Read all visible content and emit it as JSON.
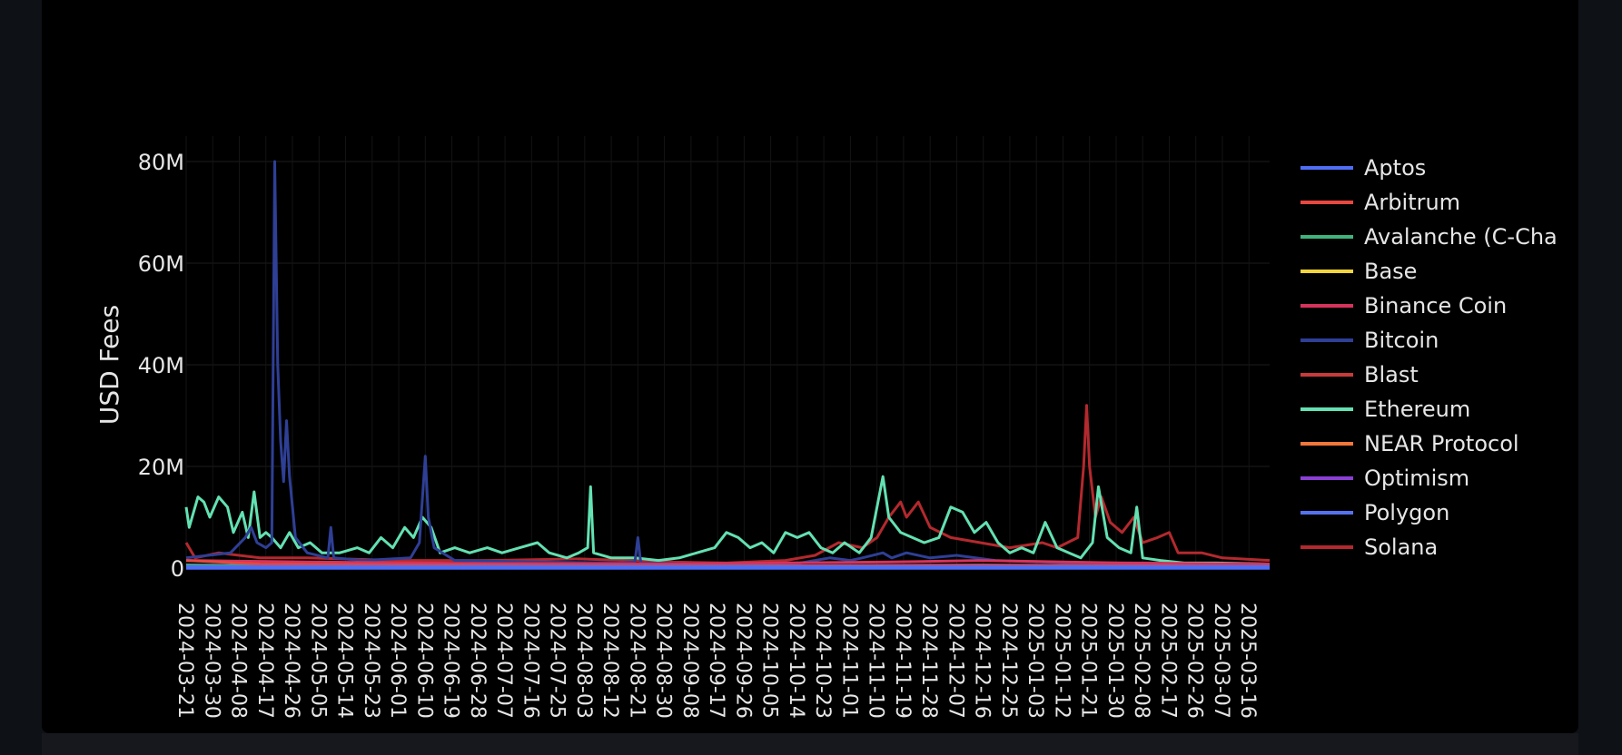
{
  "chart_data": {
    "type": "line",
    "title": "",
    "xlabel": "",
    "ylabel": "USD Fees",
    "ylim": [
      0,
      85000000
    ],
    "y_ticks": [
      {
        "value": 0,
        "label": "0"
      },
      {
        "value": 20000000,
        "label": "20M"
      },
      {
        "value": 40000000,
        "label": "40M"
      },
      {
        "value": 60000000,
        "label": "60M"
      },
      {
        "value": 80000000,
        "label": "80M"
      }
    ],
    "x_range": [
      "2024-03-21",
      "2025-03-23"
    ],
    "x_ticks": [
      "2024-03-21",
      "2024-03-30",
      "2024-04-08",
      "2024-04-17",
      "2024-04-26",
      "2024-05-05",
      "2024-05-14",
      "2024-05-23",
      "2024-06-01",
      "2024-06-10",
      "2024-06-19",
      "2024-06-28",
      "2024-07-07",
      "2024-07-16",
      "2024-07-25",
      "2024-08-03",
      "2024-08-12",
      "2024-08-21",
      "2024-08-30",
      "2024-09-08",
      "2024-09-17",
      "2024-09-26",
      "2024-10-05",
      "2024-10-14",
      "2024-10-23",
      "2024-11-01",
      "2024-11-10",
      "2024-11-19",
      "2024-11-28",
      "2024-12-07",
      "2024-12-16",
      "2024-12-25",
      "2025-01-03",
      "2025-01-12",
      "2025-01-21",
      "2025-01-30",
      "2025-02-08",
      "2025-02-17",
      "2025-02-26",
      "2025-03-07",
      "2025-03-16"
    ],
    "grid": true,
    "legend_position": "right",
    "series": [
      {
        "name": "Aptos",
        "color": "#4f6ef5",
        "points": [
          [
            "2024-03-21",
            0.15
          ],
          [
            "2024-06-01",
            0.15
          ],
          [
            "2024-09-01",
            0.12
          ],
          [
            "2024-12-01",
            0.15
          ],
          [
            "2025-03-23",
            0.12
          ]
        ]
      },
      {
        "name": "Arbitrum",
        "color": "#e8473f",
        "points": [
          [
            "2024-03-21",
            1.5
          ],
          [
            "2024-04-15",
            0.8
          ],
          [
            "2024-06-01",
            0.6
          ],
          [
            "2024-08-01",
            0.5
          ],
          [
            "2024-10-01",
            0.4
          ],
          [
            "2024-12-15",
            0.6
          ],
          [
            "2025-02-01",
            0.5
          ],
          [
            "2025-03-23",
            0.3
          ]
        ]
      },
      {
        "name": "Avalanche (C-Chain)",
        "color": "#3fb47d",
        "points": [
          [
            "2024-03-21",
            0.6
          ],
          [
            "2024-05-01",
            0.4
          ],
          [
            "2024-08-01",
            0.3
          ],
          [
            "2024-11-15",
            0.5
          ],
          [
            "2025-01-20",
            0.4
          ],
          [
            "2025-03-23",
            0.2
          ]
        ]
      },
      {
        "name": "Base",
        "color": "#f2d43c",
        "points": [
          [
            "2024-03-21",
            0.3
          ],
          [
            "2024-06-01",
            0.5
          ],
          [
            "2024-09-01",
            0.3
          ],
          [
            "2024-12-01",
            0.5
          ],
          [
            "2025-03-23",
            0.3
          ]
        ]
      },
      {
        "name": "Binance Coin",
        "color": "#d6335c",
        "points": [
          [
            "2024-03-21",
            1.5
          ],
          [
            "2024-05-01",
            1.2
          ],
          [
            "2024-07-01",
            0.9
          ],
          [
            "2024-09-01",
            0.8
          ],
          [
            "2024-11-15",
            1.2
          ],
          [
            "2024-12-15",
            1.5
          ],
          [
            "2025-02-01",
            1.0
          ],
          [
            "2025-03-23",
            0.8
          ]
        ]
      },
      {
        "name": "Bitcoin",
        "color": "#2e3f95",
        "points": [
          [
            "2024-03-21",
            2
          ],
          [
            "2024-04-05",
            3
          ],
          [
            "2024-04-10",
            6
          ],
          [
            "2024-04-12",
            8
          ],
          [
            "2024-04-14",
            5
          ],
          [
            "2024-04-17",
            4
          ],
          [
            "2024-04-19",
            5
          ],
          [
            "2024-04-20",
            80
          ],
          [
            "2024-04-21",
            40
          ],
          [
            "2024-04-22",
            25
          ],
          [
            "2024-04-23",
            17
          ],
          [
            "2024-04-24",
            29
          ],
          [
            "2024-04-25",
            18
          ],
          [
            "2024-04-27",
            6
          ],
          [
            "2024-05-01",
            3
          ],
          [
            "2024-05-08",
            2
          ],
          [
            "2024-05-09",
            8
          ],
          [
            "2024-05-10",
            2
          ],
          [
            "2024-05-20",
            1.5
          ],
          [
            "2024-06-05",
            2
          ],
          [
            "2024-06-08",
            5
          ],
          [
            "2024-06-10",
            22
          ],
          [
            "2024-06-11",
            10
          ],
          [
            "2024-06-13",
            4
          ],
          [
            "2024-06-20",
            1.5
          ],
          [
            "2024-07-15",
            1.2
          ],
          [
            "2024-08-15",
            1
          ],
          [
            "2024-08-20",
            1.2
          ],
          [
            "2024-08-21",
            6
          ],
          [
            "2024-08-22",
            1
          ],
          [
            "2024-09-15",
            0.8
          ],
          [
            "2024-10-15",
            1
          ],
          [
            "2024-10-25",
            2
          ],
          [
            "2024-11-01",
            1.5
          ],
          [
            "2024-11-05",
            2
          ],
          [
            "2024-11-12",
            3
          ],
          [
            "2024-11-15",
            2
          ],
          [
            "2024-11-20",
            3
          ],
          [
            "2024-11-28",
            2
          ],
          [
            "2024-12-07",
            2.5
          ],
          [
            "2024-12-20",
            1.5
          ],
          [
            "2025-01-15",
            1
          ],
          [
            "2025-02-10",
            1
          ],
          [
            "2025-03-23",
            0.5
          ]
        ]
      },
      {
        "name": "Blast",
        "color": "#c93a3a",
        "points": [
          [
            "2024-03-21",
            0.4
          ],
          [
            "2024-06-01",
            0.3
          ],
          [
            "2024-09-01",
            0.2
          ],
          [
            "2025-03-23",
            0.1
          ]
        ]
      },
      {
        "name": "Ethereum",
        "color": "#63e1b2",
        "points": [
          [
            "2024-03-21",
            12
          ],
          [
            "2024-03-22",
            8
          ],
          [
            "2024-03-25",
            14
          ],
          [
            "2024-03-27",
            13
          ],
          [
            "2024-03-29",
            10
          ],
          [
            "2024-04-01",
            14
          ],
          [
            "2024-04-04",
            12
          ],
          [
            "2024-04-06",
            7
          ],
          [
            "2024-04-09",
            11
          ],
          [
            "2024-04-11",
            6
          ],
          [
            "2024-04-13",
            15
          ],
          [
            "2024-04-15",
            6
          ],
          [
            "2024-04-17",
            7
          ],
          [
            "2024-04-19",
            6
          ],
          [
            "2024-04-22",
            4
          ],
          [
            "2024-04-25",
            7
          ],
          [
            "2024-04-28",
            4
          ],
          [
            "2024-05-02",
            5
          ],
          [
            "2024-05-06",
            3
          ],
          [
            "2024-05-12",
            3
          ],
          [
            "2024-05-18",
            4
          ],
          [
            "2024-05-22",
            3
          ],
          [
            "2024-05-26",
            6
          ],
          [
            "2024-05-30",
            4
          ],
          [
            "2024-06-03",
            8
          ],
          [
            "2024-06-06",
            6
          ],
          [
            "2024-06-09",
            10
          ],
          [
            "2024-06-12",
            8
          ],
          [
            "2024-06-15",
            3
          ],
          [
            "2024-06-20",
            4
          ],
          [
            "2024-06-25",
            3
          ],
          [
            "2024-07-01",
            4
          ],
          [
            "2024-07-06",
            3
          ],
          [
            "2024-07-12",
            4
          ],
          [
            "2024-07-18",
            5
          ],
          [
            "2024-07-22",
            3
          ],
          [
            "2024-07-28",
            2
          ],
          [
            "2024-08-01",
            3
          ],
          [
            "2024-08-04",
            4
          ],
          [
            "2024-08-05",
            16
          ],
          [
            "2024-08-06",
            3
          ],
          [
            "2024-08-12",
            2
          ],
          [
            "2024-08-20",
            2
          ],
          [
            "2024-08-28",
            1.5
          ],
          [
            "2024-09-04",
            2
          ],
          [
            "2024-09-10",
            3
          ],
          [
            "2024-09-16",
            4
          ],
          [
            "2024-09-20",
            7
          ],
          [
            "2024-09-24",
            6
          ],
          [
            "2024-09-28",
            4
          ],
          [
            "2024-10-02",
            5
          ],
          [
            "2024-10-06",
            3
          ],
          [
            "2024-10-10",
            7
          ],
          [
            "2024-10-14",
            6
          ],
          [
            "2024-10-18",
            7
          ],
          [
            "2024-10-22",
            4
          ],
          [
            "2024-10-26",
            3
          ],
          [
            "2024-10-30",
            5
          ],
          [
            "2024-11-04",
            3
          ],
          [
            "2024-11-08",
            6
          ],
          [
            "2024-11-12",
            18
          ],
          [
            "2024-11-14",
            10
          ],
          [
            "2024-11-18",
            7
          ],
          [
            "2024-11-22",
            6
          ],
          [
            "2024-11-26",
            5
          ],
          [
            "2024-12-01",
            6
          ],
          [
            "2024-12-05",
            12
          ],
          [
            "2024-12-09",
            11
          ],
          [
            "2024-12-13",
            7
          ],
          [
            "2024-12-17",
            9
          ],
          [
            "2024-12-21",
            5
          ],
          [
            "2024-12-25",
            3
          ],
          [
            "2024-12-29",
            4
          ],
          [
            "2025-01-02",
            3
          ],
          [
            "2025-01-06",
            9
          ],
          [
            "2025-01-10",
            4
          ],
          [
            "2025-01-14",
            3
          ],
          [
            "2025-01-18",
            2
          ],
          [
            "2025-01-22",
            5
          ],
          [
            "2025-01-24",
            16
          ],
          [
            "2025-01-27",
            6
          ],
          [
            "2025-01-31",
            4
          ],
          [
            "2025-02-04",
            3
          ],
          [
            "2025-02-06",
            12
          ],
          [
            "2025-02-08",
            2
          ],
          [
            "2025-02-14",
            1.5
          ],
          [
            "2025-02-22",
            1
          ],
          [
            "2025-03-05",
            1
          ],
          [
            "2025-03-23",
            0.8
          ]
        ]
      },
      {
        "name": "NEAR Protocol",
        "color": "#f2773a",
        "points": [
          [
            "2024-03-21",
            0.1
          ],
          [
            "2024-09-01",
            0.1
          ],
          [
            "2025-03-23",
            0.1
          ]
        ]
      },
      {
        "name": "Optimism",
        "color": "#8b3fd4",
        "points": [
          [
            "2024-03-21",
            0.2
          ],
          [
            "2024-09-01",
            0.15
          ],
          [
            "2025-03-23",
            0.1
          ]
        ]
      },
      {
        "name": "Polygon",
        "color": "#5472f0",
        "points": [
          [
            "2024-03-21",
            0.3
          ],
          [
            "2024-09-01",
            0.25
          ],
          [
            "2025-03-23",
            0.2
          ]
        ]
      },
      {
        "name": "Solana",
        "color": "#b3292e",
        "points": [
          [
            "2024-03-21",
            5
          ],
          [
            "2024-03-24",
            2
          ],
          [
            "2024-04-01",
            3
          ],
          [
            "2024-04-15",
            2
          ],
          [
            "2024-05-01",
            2
          ],
          [
            "2024-06-01",
            1.5
          ],
          [
            "2024-07-01",
            1.5
          ],
          [
            "2024-08-01",
            1.8
          ],
          [
            "2024-09-01",
            1.2
          ],
          [
            "2024-09-20",
            1
          ],
          [
            "2024-10-10",
            1.5
          ],
          [
            "2024-10-20",
            2.5
          ],
          [
            "2024-10-28",
            5
          ],
          [
            "2024-11-05",
            4
          ],
          [
            "2024-11-10",
            6
          ],
          [
            "2024-11-14",
            10
          ],
          [
            "2024-11-18",
            13
          ],
          [
            "2024-11-20",
            10
          ],
          [
            "2024-11-24",
            13
          ],
          [
            "2024-11-28",
            8
          ],
          [
            "2024-12-05",
            6
          ],
          [
            "2024-12-15",
            5
          ],
          [
            "2024-12-25",
            4
          ],
          [
            "2025-01-05",
            5
          ],
          [
            "2025-01-10",
            4
          ],
          [
            "2025-01-17",
            6
          ],
          [
            "2025-01-19",
            20
          ],
          [
            "2025-01-20",
            32
          ],
          [
            "2025-01-21",
            20
          ],
          [
            "2025-01-23",
            10
          ],
          [
            "2025-01-25",
            14
          ],
          [
            "2025-01-28",
            9
          ],
          [
            "2025-02-01",
            7
          ],
          [
            "2025-02-05",
            10
          ],
          [
            "2025-02-08",
            5
          ],
          [
            "2025-02-13",
            6
          ],
          [
            "2025-02-17",
            7
          ],
          [
            "2025-02-20",
            3
          ],
          [
            "2025-02-28",
            3
          ],
          [
            "2025-03-07",
            2
          ],
          [
            "2025-03-23",
            1.5
          ]
        ]
      }
    ]
  }
}
